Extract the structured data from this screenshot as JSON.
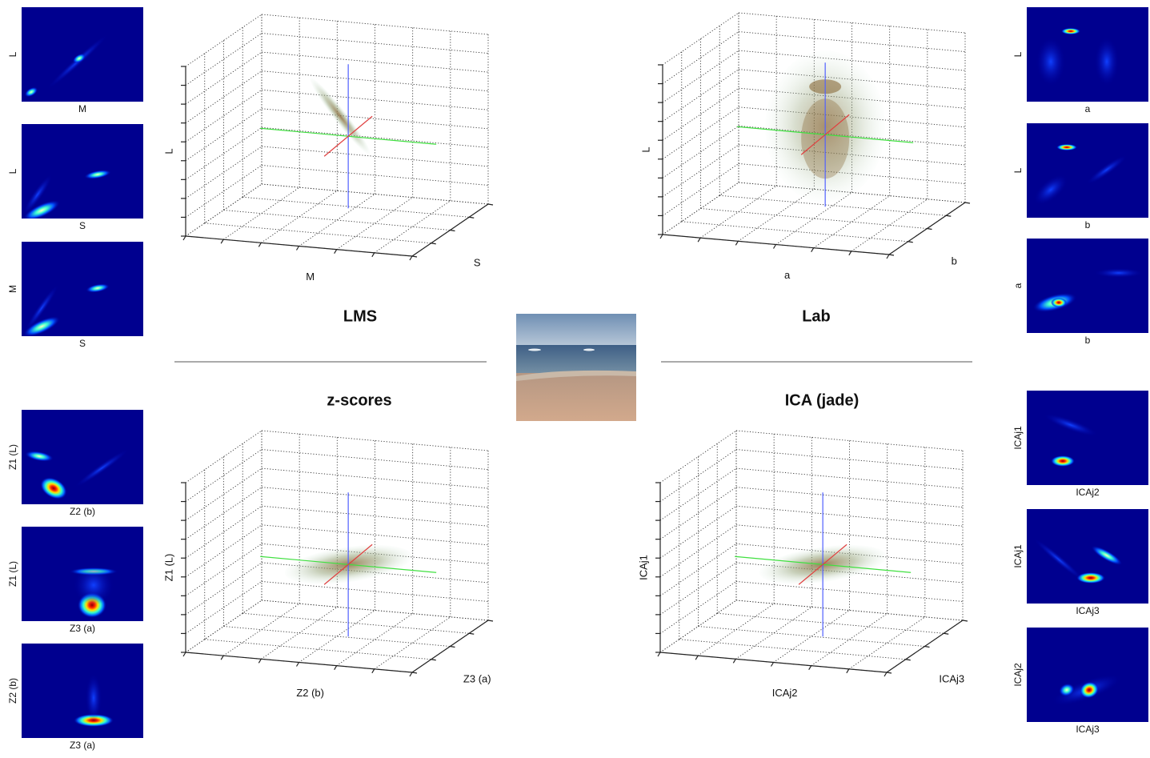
{
  "panels": [
    {
      "title": "LMS",
      "x_label": "M",
      "depth_label": "S",
      "z_label": "L",
      "marginals": [
        {
          "x_label": "M",
          "y_label": "L"
        },
        {
          "x_label": "S",
          "y_label": "L"
        },
        {
          "x_label": "S",
          "y_label": "M"
        }
      ]
    },
    {
      "title": "Lab",
      "x_label": "a",
      "depth_label": "b",
      "z_label": "L",
      "marginals": [
        {
          "x_label": "a",
          "y_label": "L"
        },
        {
          "x_label": "b",
          "y_label": "L"
        },
        {
          "x_label": "b",
          "y_label": "a"
        }
      ]
    },
    {
      "title": "z-scores",
      "x_label": "Z2 (b)",
      "depth_label": "Z3 (a)",
      "z_label": "Z1 (L)",
      "marginals": [
        {
          "x_label": "Z2 (b)",
          "y_label": "Z1 (L)"
        },
        {
          "x_label": "Z3 (a)",
          "y_label": "Z1 (L)"
        },
        {
          "x_label": "Z3 (a)",
          "y_label": "Z2 (b)"
        }
      ]
    },
    {
      "title": "ICA (jade)",
      "x_label": "ICAj2",
      "depth_label": "ICAj3",
      "z_label": "ICAj1",
      "marginals": [
        {
          "x_label": "ICAj2",
          "y_label": "ICAj1"
        },
        {
          "x_label": "ICAj3",
          "y_label": "ICAj1"
        },
        {
          "x_label": "ICAj3",
          "y_label": "ICAj2"
        }
      ]
    }
  ]
}
